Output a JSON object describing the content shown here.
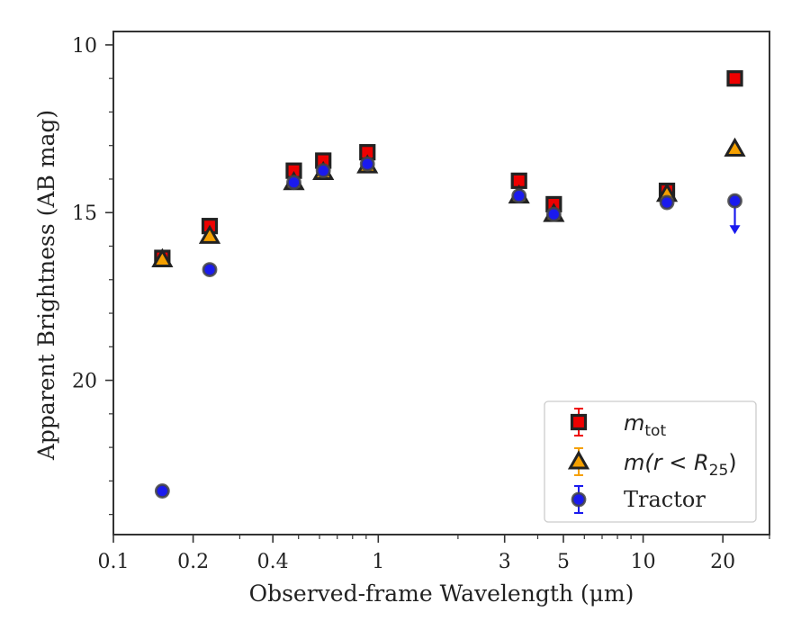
{
  "chart_data": {
    "type": "scatter",
    "xscale": "log",
    "yaxis_inverted": true,
    "xlim": [
      0.1,
      30
    ],
    "ylim": [
      24.6,
      9.6
    ],
    "xticks_major": [
      {
        "value": 0.1,
        "label": "0.1"
      },
      {
        "value": 0.2,
        "label": "0.2"
      },
      {
        "value": 0.4,
        "label": "0.4"
      },
      {
        "value": 1,
        "label": "1"
      },
      {
        "value": 3,
        "label": "3"
      },
      {
        "value": 5,
        "label": "5"
      },
      {
        "value": 10,
        "label": "10"
      },
      {
        "value": 20,
        "label": "20"
      }
    ],
    "xticks_minor": [
      0.3,
      0.5,
      0.6,
      0.7,
      0.8,
      0.9,
      2,
      4,
      6,
      7,
      8,
      9,
      30
    ],
    "yticks_major": [
      {
        "value": 10,
        "label": "10"
      },
      {
        "value": 15,
        "label": "15"
      },
      {
        "value": 20,
        "label": "20"
      }
    ],
    "yticks_minor": [
      11,
      12,
      13,
      14,
      16,
      17,
      18,
      19,
      21,
      22,
      23,
      24
    ],
    "xlabel": "Observed-frame Wavelength (μm)",
    "ylabel": "Apparent Brightness (AB mag)",
    "grid": false,
    "legend_position": "lower right",
    "series": [
      {
        "name": "m_tot",
        "legend_main": "m",
        "legend_sub": "tot",
        "marker": "square",
        "color": "#ee0000",
        "x": [
          0.153,
          0.231,
          0.48,
          0.62,
          0.91,
          3.4,
          4.6,
          12.3,
          22.2
        ],
        "y": [
          16.35,
          15.4,
          13.75,
          13.45,
          13.2,
          14.05,
          14.75,
          14.35,
          11.0
        ]
      },
      {
        "name": "m(r < R25)",
        "legend_main": "m(r < R",
        "legend_sub": "25",
        "legend_close": ")",
        "marker": "triangle",
        "color": "#f5a000",
        "x": [
          0.153,
          0.231,
          0.48,
          0.62,
          0.91,
          3.4,
          4.6,
          12.3,
          22.2
        ],
        "y": [
          16.4,
          15.7,
          14.1,
          13.8,
          13.6,
          14.5,
          15.05,
          14.45,
          13.1
        ]
      },
      {
        "name": "Tractor",
        "legend_main": "Tractor",
        "marker": "circle",
        "color": "#1a1aee",
        "x": [
          0.153,
          0.231,
          0.48,
          0.62,
          0.91,
          3.4,
          4.6,
          12.3,
          22.2
        ],
        "y": [
          23.3,
          16.7,
          14.1,
          13.75,
          13.55,
          14.5,
          15.05,
          14.7,
          14.65
        ],
        "upper_limits": [
          false,
          false,
          false,
          false,
          false,
          false,
          false,
          false,
          true
        ]
      }
    ]
  }
}
